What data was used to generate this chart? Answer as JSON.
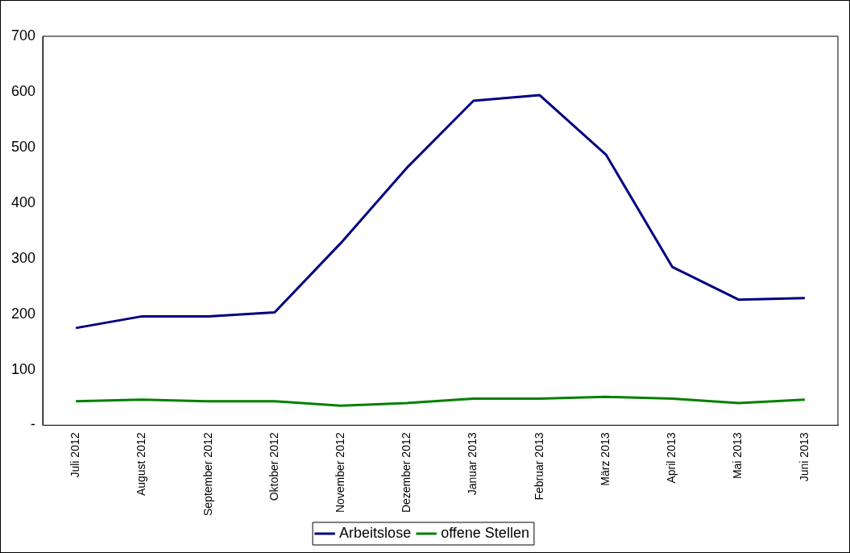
{
  "chart_data": {
    "type": "line",
    "categories": [
      "Juli 2012",
      "August 2012",
      "September 2012",
      "Oktober 2012",
      "November 2012",
      "Dezember 2012",
      "Januar 2013",
      "Februar 2013",
      "März 2013",
      "April 2013",
      "Mai 2013",
      "Juni 2013"
    ],
    "series": [
      {
        "name": "Arbeitslose",
        "color": "#000080",
        "values": [
          175,
          196,
          196,
          203,
          328,
          464,
          584,
          594,
          487,
          285,
          226,
          229
        ]
      },
      {
        "name": "offene Stellen",
        "color": "#008000",
        "values": [
          43,
          46,
          43,
          43,
          35,
          40,
          48,
          48,
          51,
          48,
          40,
          46
        ]
      }
    ],
    "ylim": [
      0,
      700
    ],
    "yticks": [
      {
        "value": 0,
        "label": "-"
      },
      100,
      200,
      300,
      400,
      500,
      600,
      700
    ],
    "grid": false,
    "legend": "bottom",
    "marker": "none",
    "line_style": "solid"
  }
}
